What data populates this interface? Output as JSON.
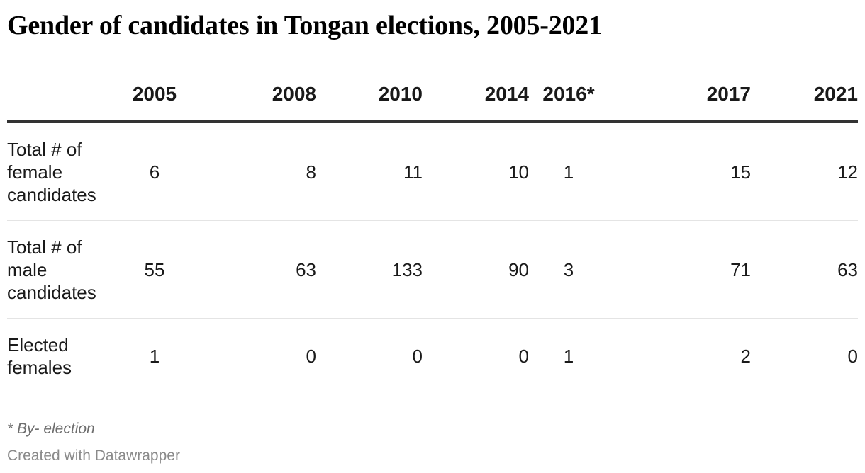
{
  "chart_data": {
    "type": "table",
    "title": "Gender of candidates in Tongan elections, 2005-2021",
    "columns": [
      "",
      "2005",
      "2008",
      "2010",
      "2014",
      "2016*",
      "2017",
      "2021"
    ],
    "rows": [
      {
        "label": "Total # of female candidates",
        "values": [
          "6",
          "8",
          "11",
          "10",
          "1",
          "15",
          "12"
        ]
      },
      {
        "label": "Total # of male candidates",
        "values": [
          "55",
          "63",
          "133",
          "90",
          "3",
          "71",
          "63"
        ]
      },
      {
        "label": "Elected females",
        "values": [
          "1",
          "0",
          "0",
          "0",
          "1",
          "2",
          "0"
        ]
      }
    ],
    "footnote": "* By- election",
    "credit": "Created with Datawrapper"
  }
}
